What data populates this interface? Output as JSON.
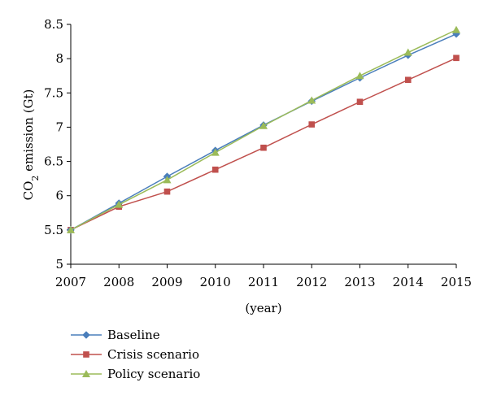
{
  "chart_data": {
    "type": "line",
    "title": "",
    "xlabel": "(year)",
    "ylabel": {
      "prefix": "CO",
      "subscript": "2",
      "suffix": " emission (Gt)"
    },
    "x": [
      2007,
      2008,
      2009,
      2010,
      2011,
      2012,
      2013,
      2014,
      2015
    ],
    "xlim": [
      2007,
      2015
    ],
    "ylim": [
      5,
      8.5
    ],
    "yticks": [
      5,
      5.5,
      6,
      6.5,
      7,
      7.5,
      8,
      8.5
    ],
    "ytick_labels": [
      "5",
      "5.5",
      "6",
      "6.5",
      "7",
      "7.5",
      "8",
      "8.5"
    ],
    "grid": false,
    "legend_position": "bottom-left",
    "series": [
      {
        "name": "Baseline",
        "color": "#4a7ebb",
        "marker": "diamond",
        "values": [
          5.5,
          5.89,
          6.28,
          6.66,
          7.03,
          7.38,
          7.72,
          8.05,
          8.36
        ]
      },
      {
        "name": "Crisis scenario",
        "color": "#c0504d",
        "marker": "square",
        "values": [
          5.5,
          5.84,
          6.06,
          6.38,
          6.7,
          7.04,
          7.37,
          7.69,
          8.01
        ]
      },
      {
        "name": "Policy scenario",
        "color": "#9bbb59",
        "marker": "triangle",
        "values": [
          5.5,
          5.87,
          6.23,
          6.63,
          7.02,
          7.39,
          7.75,
          8.09,
          8.42
        ]
      }
    ]
  }
}
